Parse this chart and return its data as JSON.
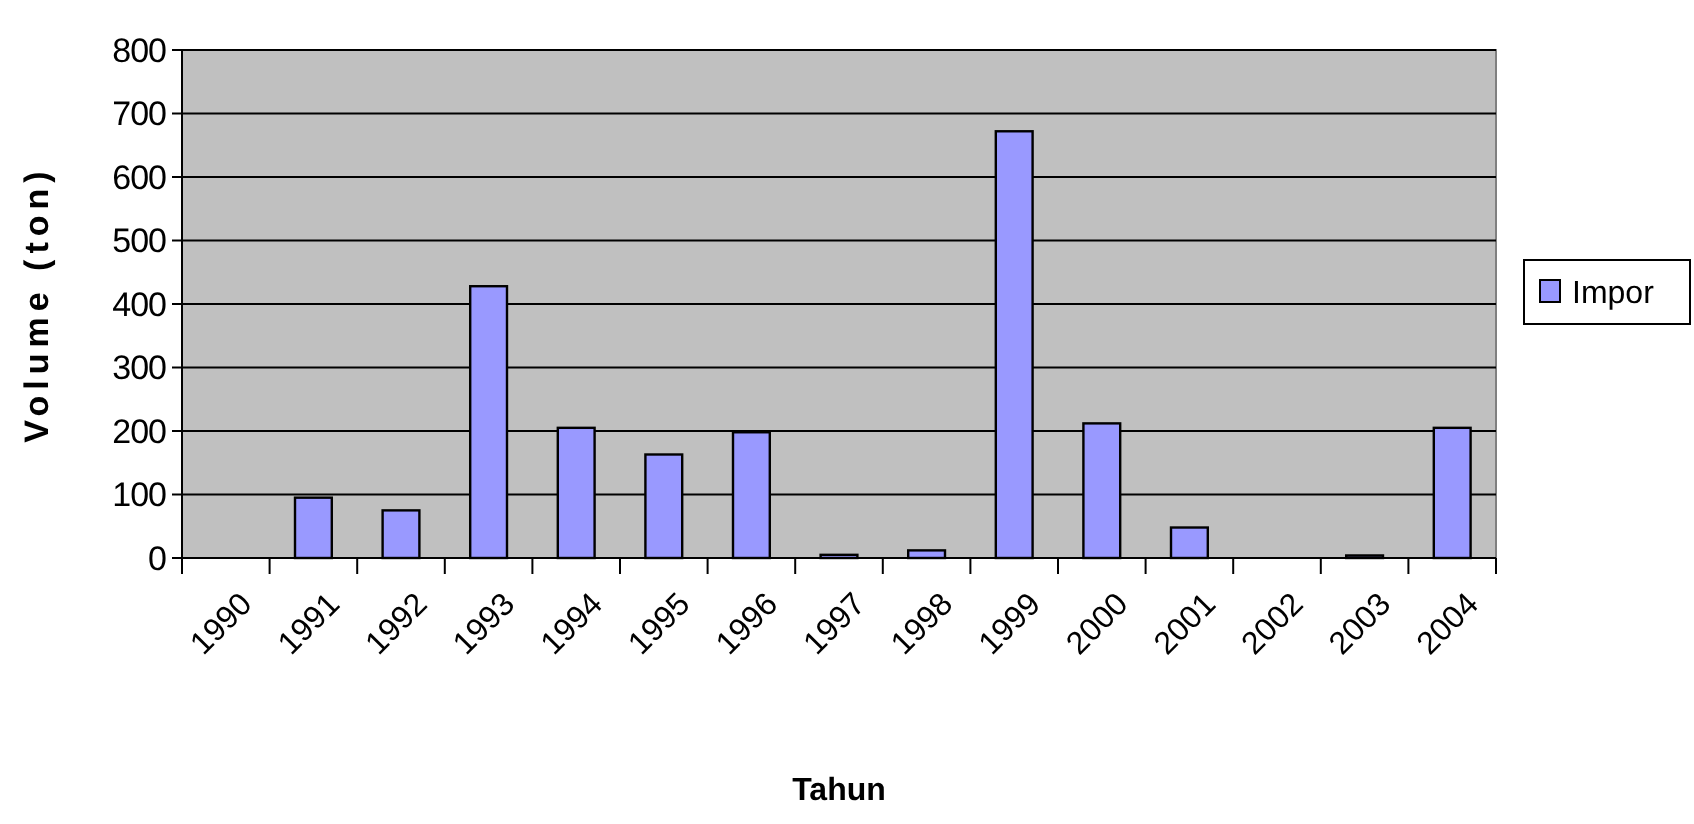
{
  "chart_data": {
    "type": "bar",
    "xlabel": "Tahun",
    "ylabel": "Volume (ton)",
    "categories": [
      "1990",
      "1991",
      "1992",
      "1993",
      "1994",
      "1995",
      "1996",
      "1997",
      "1998",
      "1999",
      "2000",
      "2001",
      "2002",
      "2003",
      "2004"
    ],
    "series": [
      {
        "name": "Impor",
        "color": "#9999ff",
        "values": [
          0,
          95,
          75,
          428,
          205,
          163,
          198,
          5,
          12,
          672,
          212,
          48,
          0,
          4,
          205
        ]
      }
    ],
    "ylim": [
      0,
      800
    ],
    "yticks": [
      0,
      100,
      200,
      300,
      400,
      500,
      600,
      700,
      800
    ],
    "grid": "y",
    "legend": "right"
  }
}
